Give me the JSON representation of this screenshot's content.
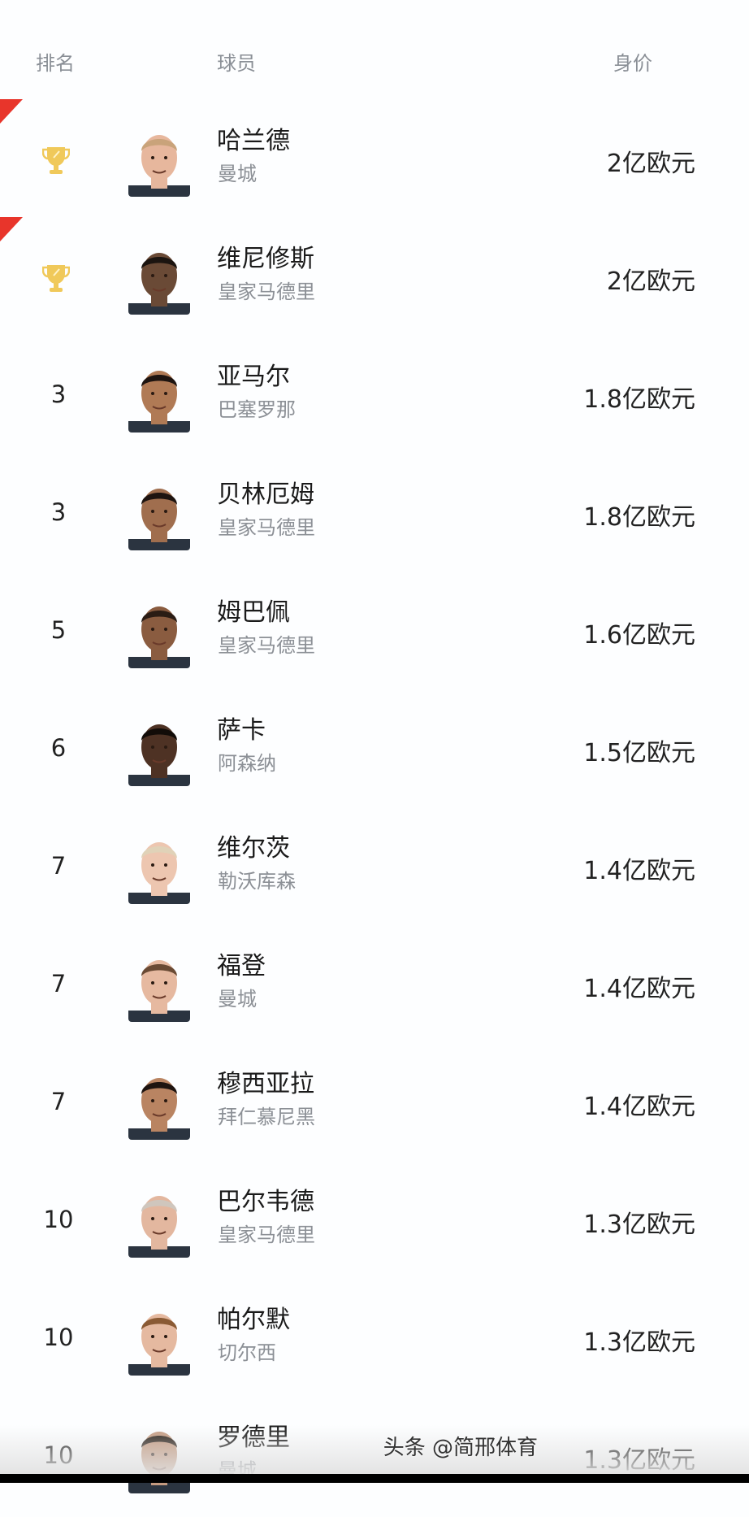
{
  "header": {
    "rank": "排名",
    "player": "球员",
    "value": "身价"
  },
  "colors": {
    "trophy": "#f0c95a",
    "flag": "#e8352b",
    "name": "#1a1a1a",
    "team": "#8c9096"
  },
  "rows": [
    {
      "rank": "",
      "icon": "trophy-icon",
      "name": "哈兰德",
      "team": "曼城",
      "value": "2亿欧元",
      "skin": "#e7b79d",
      "hair": "#c9a37a",
      "flag": true
    },
    {
      "rank": "",
      "icon": "trophy-icon",
      "name": "维尼修斯",
      "team": "皇家马德里",
      "value": "2亿欧元",
      "skin": "#6a4a36",
      "hair": "#1b1410",
      "flag": true
    },
    {
      "rank": "3",
      "name": "亚马尔",
      "team": "巴塞罗那",
      "value": "1.8亿欧元",
      "skin": "#b07a55",
      "hair": "#1e1410"
    },
    {
      "rank": "3",
      "name": "贝林厄姆",
      "team": "皇家马德里",
      "value": "1.8亿欧元",
      "skin": "#a06e4e",
      "hair": "#1e1410"
    },
    {
      "rank": "5",
      "name": "姆巴佩",
      "team": "皇家马德里",
      "value": "1.6亿欧元",
      "skin": "#8a5c40",
      "hair": "#2a1c14"
    },
    {
      "rank": "6",
      "name": "萨卡",
      "team": "阿森纳",
      "value": "1.5亿欧元",
      "skin": "#4e3224",
      "hair": "#120c08"
    },
    {
      "rank": "7",
      "name": "维尔茨",
      "team": "勒沃库森",
      "value": "1.4亿欧元",
      "skin": "#edc6b0",
      "hair": "#e0d2b8"
    },
    {
      "rank": "7",
      "name": "福登",
      "team": "曼城",
      "value": "1.4亿欧元",
      "skin": "#e6b9a0",
      "hair": "#6a4a34"
    },
    {
      "rank": "7",
      "name": "穆西亚拉",
      "team": "拜仁慕尼黑",
      "value": "1.4亿欧元",
      "skin": "#b98462",
      "hair": "#1e1410"
    },
    {
      "rank": "10",
      "name": "巴尔韦德",
      "team": "皇家马德里",
      "value": "1.3亿欧元",
      "skin": "#e3b79f",
      "hair": "#cfc6bd"
    },
    {
      "rank": "10",
      "name": "帕尔默",
      "team": "切尔西",
      "value": "1.3亿欧元",
      "skin": "#e5b9a0",
      "hair": "#8a5a34"
    },
    {
      "rank": "10",
      "name": "罗德里",
      "team": "曼城",
      "value": "1.3亿欧元",
      "skin": "#c49a80",
      "hair": "#2a2018"
    }
  ],
  "watermark": "头条 @简邢体育"
}
